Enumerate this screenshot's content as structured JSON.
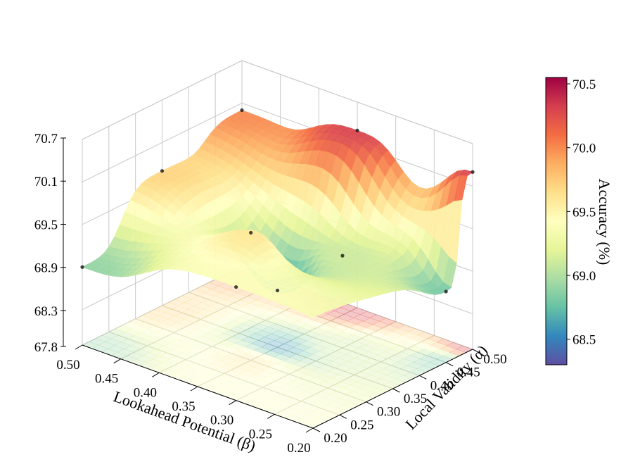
{
  "chart_data": {
    "type": "surface3d",
    "xlabel": "Lookahead Potential (β)",
    "ylabel": "Local Validity (α)",
    "zlabel": "",
    "x_ticks": [
      "0.50",
      "0.45",
      "0.40",
      "0.35",
      "0.30",
      "0.25",
      "0.20"
    ],
    "y_ticks": [
      "0.20",
      "0.25",
      "0.30",
      "0.35",
      "0.40",
      "0.45",
      "0.50"
    ],
    "z_ticks": [
      "67.8",
      "68.3",
      "68.9",
      "69.5",
      "70.1",
      "70.7"
    ],
    "xlim": [
      0.2,
      0.5
    ],
    "ylim": [
      0.2,
      0.5
    ],
    "zlim": [
      67.8,
      70.7
    ],
    "grid": true,
    "colormap": "Spectral_r",
    "colorbar": {
      "label": "Accuracy (%)",
      "ticks": [
        "68.5",
        "69.0",
        "69.5",
        "70.0",
        "70.5"
      ],
      "range": [
        68.3,
        70.55
      ],
      "colors": [
        "#5e4fa2",
        "#3288bd",
        "#66c2a5",
        "#abdda4",
        "#e6f598",
        "#ffffbf",
        "#fee08b",
        "#fdae61",
        "#f46d43",
        "#d53e4f",
        "#9e0142"
      ]
    },
    "points": [
      {
        "alpha": 0.2,
        "beta": 0.5,
        "z": 68.9
      },
      {
        "alpha": 0.35,
        "beta": 0.5,
        "z": 69.7
      },
      {
        "alpha": 0.5,
        "beta": 0.5,
        "z": 70.0
      },
      {
        "alpha": 0.35,
        "beta": 0.35,
        "z": 68.6
      },
      {
        "alpha": 0.5,
        "beta": 0.35,
        "z": 70.3
      },
      {
        "alpha": 0.4,
        "beta": 0.3,
        "z": 69.1
      },
      {
        "alpha": 0.2,
        "beta": 0.3,
        "z": 69.4
      },
      {
        "alpha": 0.3,
        "beta": 0.35,
        "z": 69.6
      },
      {
        "alpha": 0.45,
        "beta": 0.2,
        "z": 68.8
      },
      {
        "alpha": 0.5,
        "beta": 0.2,
        "z": 70.3
      }
    ]
  }
}
